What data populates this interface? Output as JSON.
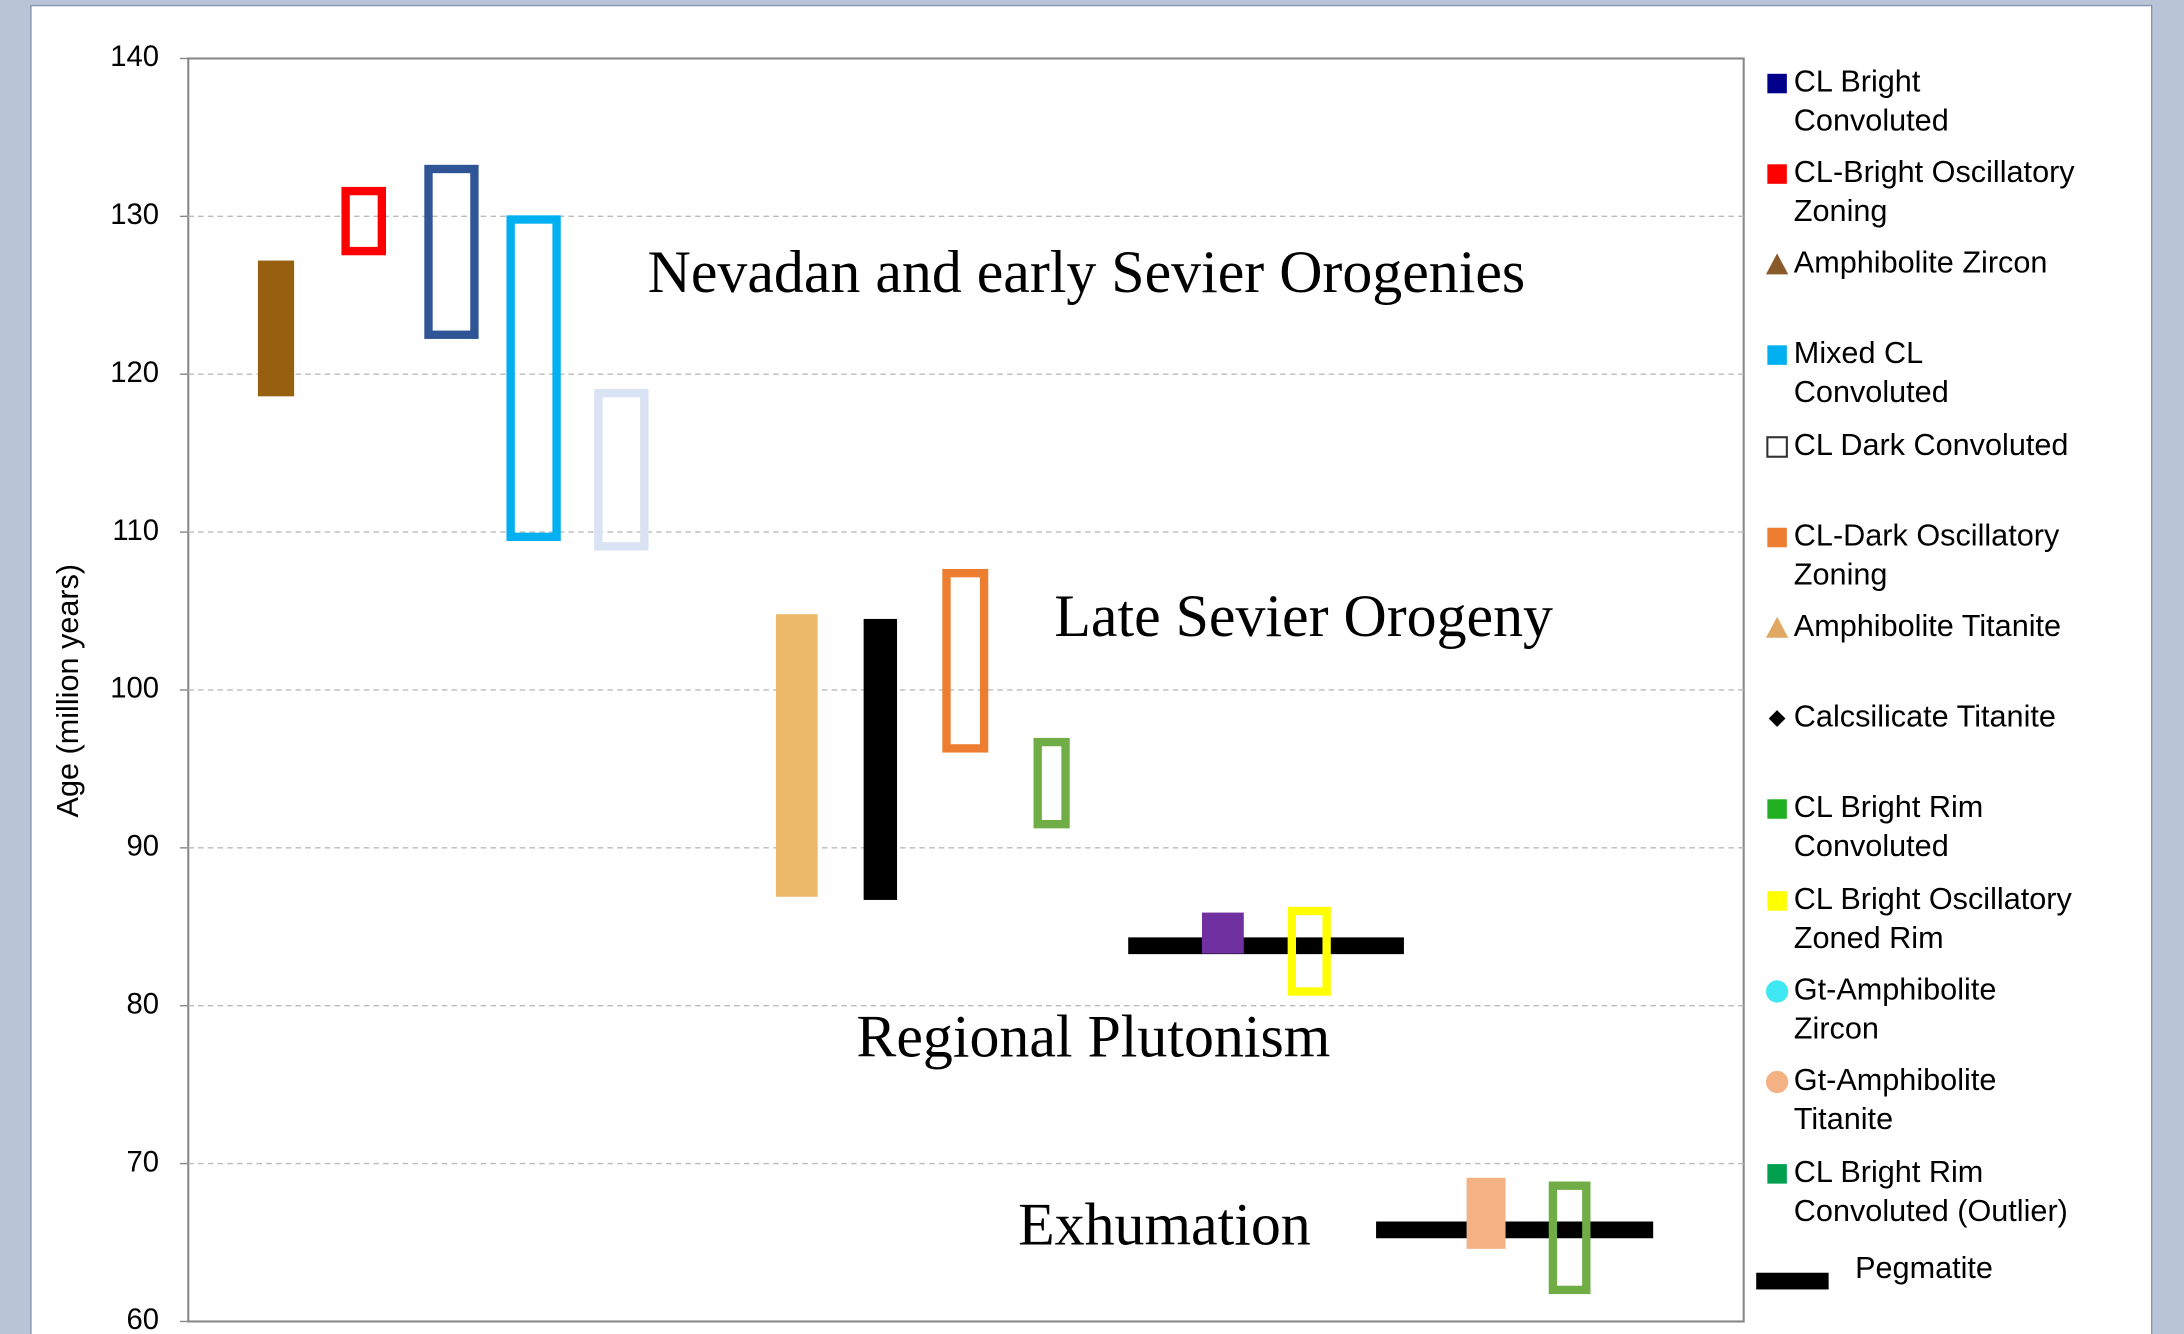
{
  "chart_data": {
    "type": "range",
    "y_label": "Age (million years)",
    "ylim": [
      60,
      140
    ],
    "yticks": [
      60,
      70,
      80,
      90,
      100,
      110,
      120,
      130,
      140
    ],
    "grid": true,
    "bars": [
      {
        "low": 118.6,
        "high": 127.2,
        "color": "#96600f",
        "style": "filled"
      },
      {
        "low": 127.8,
        "high": 131.6,
        "color": "#ff0000",
        "style": "outline"
      },
      {
        "low": 122.5,
        "high": 133.0,
        "color": "#2f5597",
        "style": "outline"
      },
      {
        "low": 109.7,
        "high": 129.8,
        "color": "#00b0f0",
        "style": "outline"
      },
      {
        "low": 109.1,
        "high": 118.8,
        "color": "#dae3f3",
        "style": "outline"
      },
      {
        "low": 86.9,
        "high": 104.8,
        "color": "#ecb96a",
        "style": "filled"
      },
      {
        "low": 86.7,
        "high": 104.5,
        "color": "#000000",
        "style": "filled"
      },
      {
        "low": 96.3,
        "high": 107.4,
        "color": "#ed7d31",
        "style": "outline"
      },
      {
        "low": 91.5,
        "high": 96.7,
        "color": "#70ad47",
        "style": "outline"
      },
      {
        "value": 83.8,
        "color": "#000000",
        "style": "line"
      },
      {
        "low": 83.3,
        "high": 85.9,
        "color": "#7030a0",
        "style": "filled"
      },
      {
        "low": 80.9,
        "high": 86.0,
        "color": "#ffff00",
        "style": "outline"
      },
      {
        "value": 65.8,
        "color": "#000000",
        "style": "line"
      },
      {
        "low": 64.6,
        "high": 69.1,
        "color": "#f4b183",
        "style": "filled"
      },
      {
        "low": 62.0,
        "high": 68.6,
        "color": "#70ad47",
        "style": "outline"
      }
    ],
    "annotations": [
      "Nevadan and early Sevier Orogenies",
      "Late Sevier Orogeny",
      "Regional Plutonism",
      "Exhumation"
    ],
    "legend": [
      {
        "name": [
          "CL Bright",
          "Convoluted"
        ],
        "marker": "square",
        "color": "#00008b"
      },
      {
        "name": [
          "CL-Bright Oscillatory",
          "Zoning"
        ],
        "marker": "square",
        "color": "#ff0000"
      },
      {
        "name": [
          "Amphibolite Zircon"
        ],
        "marker": "triangle",
        "color": "#8b5a2b"
      },
      {
        "name": [
          "Mixed CL",
          "Convoluted"
        ],
        "marker": "square",
        "color": "#00b0f0"
      },
      {
        "name": [
          "CL Dark Convoluted"
        ],
        "marker": "open-square",
        "color": "#333333"
      },
      {
        "name": [
          "CL-Dark Oscillatory",
          "Zoning"
        ],
        "marker": "square",
        "color": "#ed7d31"
      },
      {
        "name": [
          "Amphibolite Titanite"
        ],
        "marker": "triangle",
        "color": "#e0a860"
      },
      {
        "name": [
          "Calcsilicate Titanite"
        ],
        "marker": "diamond",
        "color": "#000000"
      },
      {
        "name": [
          "CL Bright Rim",
          "Convoluted"
        ],
        "marker": "square",
        "color": "#22b022"
      },
      {
        "name": [
          "CL Bright Oscillatory",
          "Zoned Rim"
        ],
        "marker": "square",
        "color": "#ffff00"
      },
      {
        "name": [
          "Gt-Amphibolite",
          "Zircon"
        ],
        "marker": "circle",
        "color": "#40e8f4"
      },
      {
        "name": [
          "Gt-Amphibolite",
          "Titanite"
        ],
        "marker": "circle",
        "color": "#f4b183"
      },
      {
        "name": [
          "CL Bright Rim",
          "Convoluted (Outlier)"
        ],
        "marker": "square",
        "color": "#00a050"
      },
      {
        "name": [
          "Pegmatite"
        ],
        "marker": "bar",
        "color": "#000000"
      }
    ]
  }
}
